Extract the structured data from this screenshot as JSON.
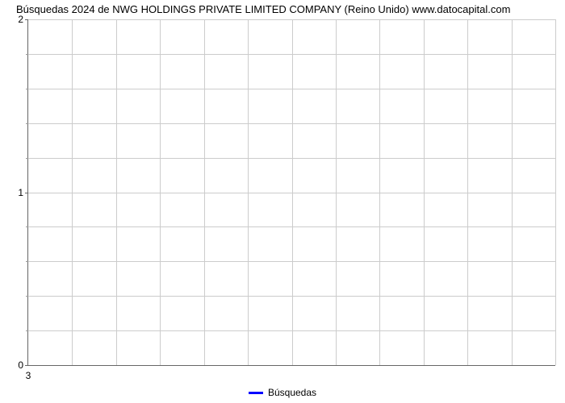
{
  "chart": {
    "type": "line",
    "title": "Búsquedas 2024 de NWG HOLDINGS PRIVATE LIMITED COMPANY (Reino Unido) www.datocapital.com",
    "title_fontsize": 13,
    "title_color": "#000000",
    "background_color": "#ffffff",
    "grid_color": "#cccccc",
    "axis_color": "#666666",
    "y_axis": {
      "min": 0,
      "max": 2,
      "major_ticks": [
        0,
        1,
        2
      ],
      "minor_tick_count_between": 5,
      "label_fontsize": 12,
      "label_color": "#000000"
    },
    "x_axis": {
      "ticks": [
        "3"
      ],
      "vertical_grid_count": 12,
      "label_fontsize": 12,
      "label_color": "#000000"
    },
    "series": [
      {
        "name": "Búsquedas",
        "color": "#0000ff",
        "data": []
      }
    ],
    "legend": {
      "position": "bottom-center",
      "fontsize": 12,
      "swatch_width": 18,
      "swatch_height": 3
    }
  }
}
